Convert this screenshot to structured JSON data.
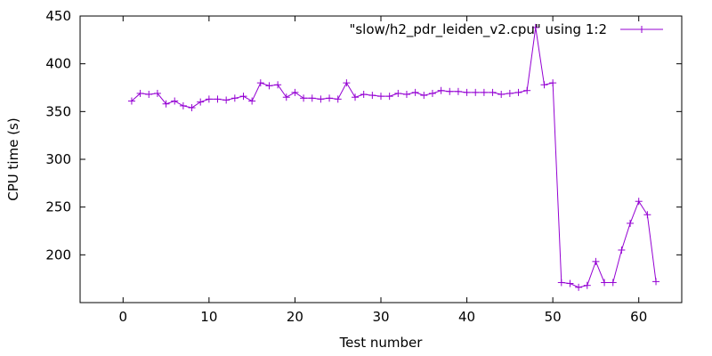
{
  "chart_data": {
    "type": "line",
    "xlabel": "Test number",
    "ylabel": "CPU time (s)",
    "xlim": [
      -5,
      65
    ],
    "ylim": [
      150,
      450
    ],
    "xticks": [
      0,
      10,
      20,
      30,
      40,
      50,
      60
    ],
    "yticks": [
      200,
      250,
      300,
      350,
      400,
      450
    ],
    "grid": false,
    "legend": "top-right",
    "series": [
      {
        "name": "\"slow/h2_pdr_leiden_v2.cpu\" using 1:2",
        "color": "#9400d3",
        "marker": "plus",
        "x": [
          1,
          2,
          3,
          4,
          5,
          6,
          7,
          8,
          9,
          10,
          11,
          12,
          13,
          14,
          15,
          16,
          17,
          18,
          19,
          20,
          21,
          22,
          23,
          24,
          25,
          26,
          27,
          28,
          29,
          30,
          31,
          32,
          33,
          34,
          35,
          36,
          37,
          38,
          39,
          40,
          41,
          42,
          43,
          44,
          45,
          46,
          47,
          48,
          49,
          50,
          51,
          52,
          53,
          54,
          55,
          56,
          57,
          58,
          59,
          60,
          61,
          62
        ],
        "y": [
          361,
          369,
          368,
          369,
          358,
          361,
          356,
          354,
          360,
          363,
          363,
          362,
          364,
          366,
          361,
          380,
          377,
          378,
          365,
          370,
          364,
          364,
          363,
          364,
          363,
          380,
          365,
          368,
          367,
          366,
          366,
          369,
          368,
          370,
          367,
          369,
          372,
          371,
          371,
          370,
          370,
          370,
          370,
          368,
          369,
          370,
          372,
          438,
          378,
          380,
          171,
          170,
          166,
          168,
          193,
          171,
          171,
          205,
          233,
          256,
          242,
          172
        ]
      }
    ]
  }
}
